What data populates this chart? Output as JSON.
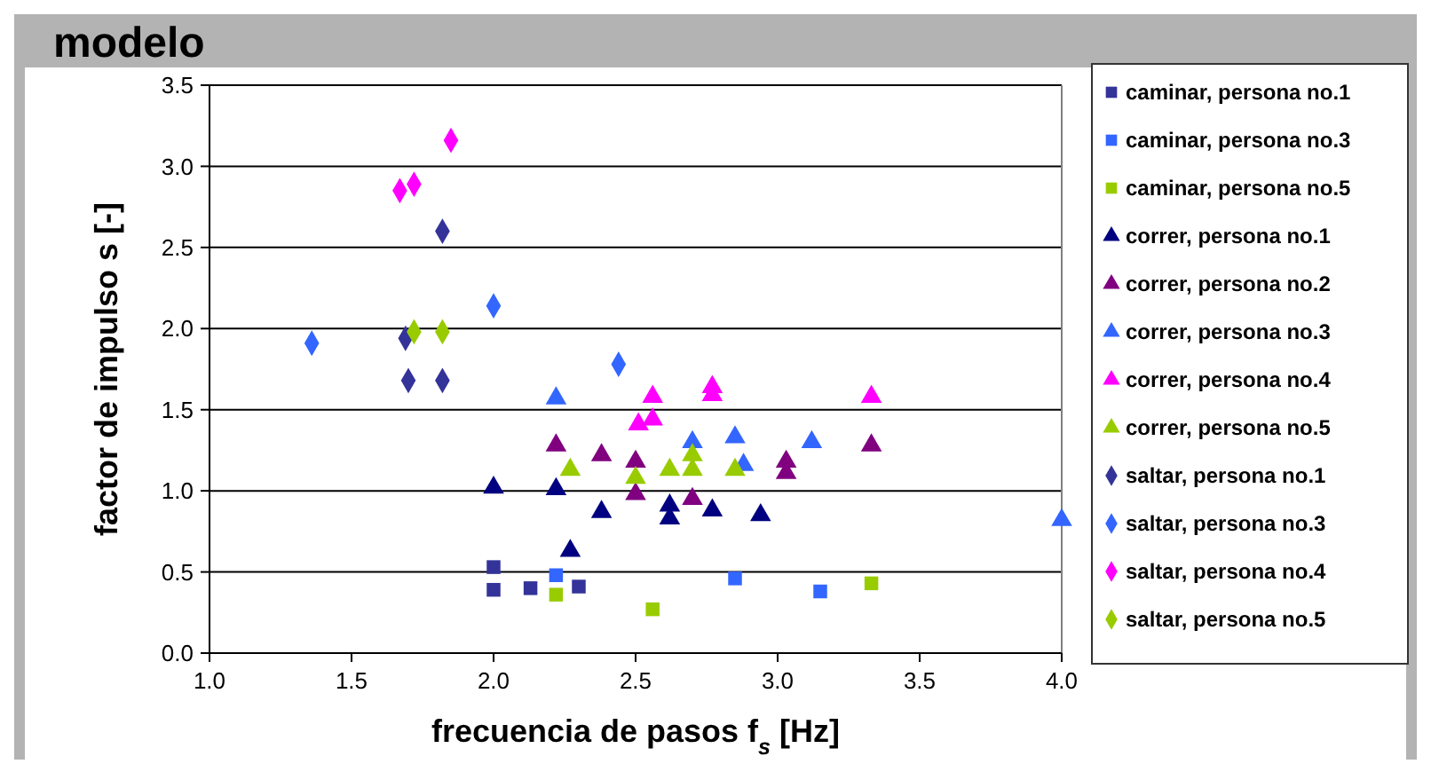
{
  "chart_data": {
    "type": "scatter",
    "title": "modelo",
    "xlabel": "frecuencia de pasos f$_{s}$ [Hz]",
    "ylabel": "factor de impulso s [-]",
    "xlim": [
      1.0,
      4.0
    ],
    "xticks": [
      {
        "value": 1,
        "label": "1.0"
      },
      1.5,
      {
        "value": 2,
        "label": "2.0"
      },
      2.5,
      {
        "value": 3,
        "label": "3.0"
      },
      3.5,
      {
        "value": 4,
        "label": "4.0"
      }
    ],
    "ylim": [
      0,
      3.5
    ],
    "yticks": [
      {
        "value": 0,
        "label": "0.0"
      },
      0.5,
      {
        "value": 1,
        "label": "1.0"
      },
      1.5,
      {
        "value": 2,
        "label": "2.0"
      },
      2.5,
      {
        "value": 3,
        "label": "3.0"
      },
      3.5
    ],
    "grid": "y",
    "legend": "right",
    "series": [
      {
        "name": "caminar, persona no.1",
        "color": "#333399",
        "marker": "square",
        "x": [
          2.0,
          2.0,
          2.13,
          2.3
        ],
        "values": [
          0.53,
          0.39,
          0.4,
          0.41
        ]
      },
      {
        "name": "caminar, persona no.3",
        "color": "#3366ff",
        "marker": "square",
        "x": [
          2.22,
          2.85,
          3.15
        ],
        "values": [
          0.48,
          0.46,
          0.38
        ]
      },
      {
        "name": "caminar, persona no.5",
        "color": "#99cc00",
        "marker": "square",
        "x": [
          2.22,
          2.56,
          3.33
        ],
        "values": [
          0.36,
          0.27,
          0.43
        ]
      },
      {
        "name": "correr, persona no.1",
        "color": "#000080",
        "marker": "triangle",
        "x": [
          2.0,
          2.22,
          2.38,
          2.27,
          2.62,
          2.62,
          2.77,
          2.94
        ],
        "values": [
          1.02,
          1.01,
          0.87,
          0.63,
          0.91,
          0.83,
          0.88,
          0.85
        ]
      },
      {
        "name": "correr, persona no.2",
        "color": "#800080",
        "marker": "triangle",
        "x": [
          2.22,
          2.38,
          2.5,
          2.5,
          2.7,
          3.03,
          3.03,
          3.33
        ],
        "values": [
          1.28,
          1.22,
          1.18,
          0.98,
          0.95,
          1.18,
          1.11,
          1.28
        ]
      },
      {
        "name": "correr, persona no.3",
        "color": "#3366ff",
        "marker": "triangle",
        "x": [
          2.22,
          2.7,
          2.85,
          2.88,
          3.12,
          4.0
        ],
        "values": [
          1.57,
          1.3,
          1.33,
          1.16,
          1.3,
          0.82
        ]
      },
      {
        "name": "correr, persona no.4",
        "color": "#ff00ff",
        "marker": "triangle",
        "x": [
          2.56,
          2.51,
          2.56,
          2.77,
          2.77,
          3.33
        ],
        "values": [
          1.58,
          1.41,
          1.44,
          1.64,
          1.59,
          1.58
        ]
      },
      {
        "name": "correr, persona no.5",
        "color": "#99cc00",
        "marker": "triangle",
        "x": [
          2.27,
          2.5,
          2.62,
          2.7,
          2.7,
          2.85
        ],
        "values": [
          1.13,
          1.08,
          1.13,
          1.22,
          1.13,
          1.13
        ]
      },
      {
        "name": "saltar, persona no.1",
        "color": "#333399",
        "marker": "diamond",
        "x": [
          1.7,
          1.82,
          1.69,
          1.82
        ],
        "values": [
          1.68,
          1.68,
          1.94,
          2.6
        ]
      },
      {
        "name": "saltar, persona no.3",
        "color": "#3366ff",
        "marker": "diamond",
        "x": [
          1.36,
          2.0,
          2.44
        ],
        "values": [
          1.91,
          2.14,
          1.78
        ]
      },
      {
        "name": "saltar, persona no.4",
        "color": "#ff00ff",
        "marker": "diamond",
        "x": [
          1.72,
          1.67,
          1.85
        ],
        "values": [
          2.89,
          2.85,
          3.16
        ]
      },
      {
        "name": "saltar, persona no.5",
        "color": "#99cc00",
        "marker": "diamond",
        "x": [
          1.72,
          1.82
        ],
        "values": [
          1.98,
          1.98
        ]
      }
    ]
  }
}
